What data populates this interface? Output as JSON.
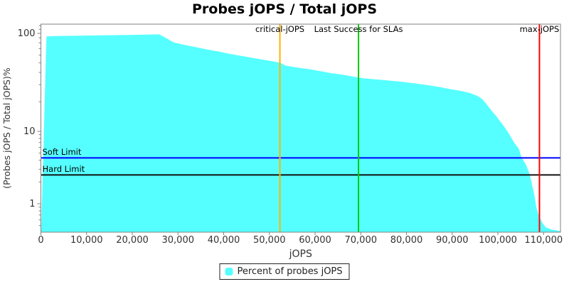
{
  "page": {
    "title": "Probes jOPS / Total jOPS"
  },
  "colors": {
    "series_fill": "#55FFFF",
    "critical_line": "#FFB300",
    "last_success_line": "#00CC00",
    "max_line": "#FF0000",
    "soft_limit_line": "#0000FF",
    "hard_limit_line": "#111111",
    "plot_border": "#808080",
    "tick_text": "#333333"
  },
  "chart_data": {
    "type": "area",
    "title": "Probes jOPS / Total jOPS",
    "xlabel": "jOPS",
    "ylabel": "(Probes jOPS / Total jOPS)%",
    "grid": false,
    "x_axis": {
      "min": 0,
      "max": 113600,
      "tick_values": [
        0,
        10000,
        20000,
        30000,
        40000,
        50000,
        60000,
        70000,
        80000,
        90000,
        100000,
        110000
      ],
      "tick_labels": [
        "0",
        "10,000",
        "20,000",
        "30,000",
        "40,000",
        "50,000",
        "60,000",
        "70,000",
        "80,000",
        "90,000",
        "100,000",
        "110,000"
      ]
    },
    "y_axis": {
      "scale": "log",
      "min": 0.4,
      "max": 124,
      "tick_values": [
        100,
        10,
        1
      ],
      "tick_labels": [
        "100",
        "10",
        "1"
      ]
    },
    "series": [
      {
        "name": "Percent of probes jOPS",
        "color": "#55FFFF",
        "points": [
          [
            80,
            0.42
          ],
          [
            390,
            2.3
          ],
          [
            700,
            11.8
          ],
          [
            1010,
            42
          ],
          [
            1170,
            79
          ],
          [
            1250,
            93.1
          ],
          [
            3000,
            93.8
          ],
          [
            6000,
            94.3
          ],
          [
            10000,
            94.9
          ],
          [
            15000,
            95.7
          ],
          [
            20000,
            96.6
          ],
          [
            24000,
            97.3
          ],
          [
            25900,
            97.7
          ],
          [
            27500,
            89
          ],
          [
            29000,
            81
          ],
          [
            31000,
            77
          ],
          [
            33500,
            73
          ],
          [
            36000,
            69
          ],
          [
            39000,
            65
          ],
          [
            41500,
            61.5
          ],
          [
            44000,
            58.7
          ],
          [
            46500,
            56
          ],
          [
            49500,
            53
          ],
          [
            52300,
            50.3
          ],
          [
            53500,
            47
          ],
          [
            56000,
            44.8
          ],
          [
            59500,
            42.5
          ],
          [
            63700,
            39.1
          ],
          [
            65000,
            38.5
          ],
          [
            67500,
            36.8
          ],
          [
            69500,
            35.3
          ],
          [
            72000,
            34.3
          ],
          [
            75000,
            33.4
          ],
          [
            79000,
            32
          ],
          [
            82000,
            30.8
          ],
          [
            85000,
            29.5
          ],
          [
            87500,
            28.2
          ],
          [
            89500,
            27
          ],
          [
            91000,
            26.3
          ],
          [
            92500,
            25.5
          ],
          [
            94000,
            24.5
          ],
          [
            95500,
            23
          ],
          [
            96500,
            21.5
          ],
          [
            97300,
            19.5
          ],
          [
            98100,
            17.5
          ],
          [
            98900,
            15.7
          ],
          [
            99700,
            14.2
          ],
          [
            100400,
            12.8
          ],
          [
            101200,
            11.5
          ],
          [
            101900,
            10.3
          ],
          [
            102600,
            8.9
          ],
          [
            103500,
            7.1
          ],
          [
            104600,
            5.7
          ],
          [
            105100,
            4.5
          ],
          [
            106200,
            3.4
          ],
          [
            107000,
            2.5
          ],
          [
            107500,
            1.8
          ],
          [
            107900,
            1.4
          ],
          [
            108400,
            0.9
          ],
          [
            109000,
            0.68
          ],
          [
            109700,
            0.55
          ],
          [
            110500,
            0.47
          ],
          [
            111800,
            0.44
          ],
          [
            113600,
            0.42
          ]
        ]
      }
    ],
    "vlines": [
      {
        "label": "critical-jOPS",
        "x": 52300,
        "color": "#FFB300"
      },
      {
        "label": "Last Success for SLAs",
        "x": 69500,
        "color": "#00CC00"
      },
      {
        "label": "max-jOPS",
        "x": 109100,
        "color": "#FF0000"
      }
    ],
    "hlines": [
      {
        "label": "Soft Limit",
        "y": 4.3,
        "color": "#0000FF"
      },
      {
        "label": "Hard Limit",
        "y": 2.5,
        "color": "#111111"
      }
    ],
    "legend": {
      "position": "bottom",
      "entries": [
        {
          "label": "Percent of probes jOPS",
          "color": "#55FFFF"
        }
      ]
    }
  }
}
